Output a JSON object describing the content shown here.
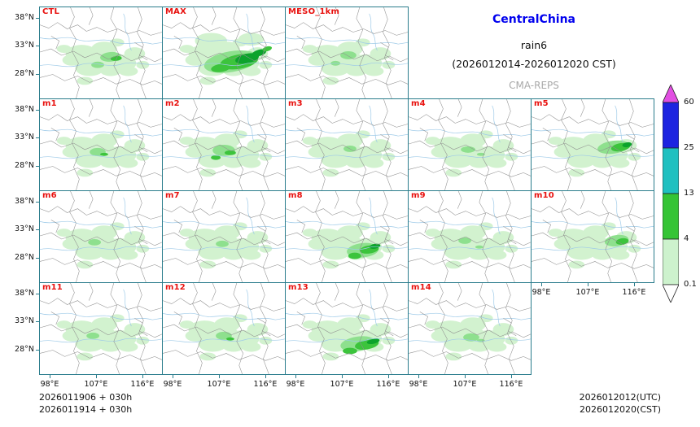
{
  "header": {
    "region": "CentralChina",
    "variable": "rain6",
    "period": "(2026012014-2026012020 CST)",
    "model": "CMA-REPS"
  },
  "footer": {
    "init1": "2026011906  +  030h",
    "init2": "2026011914  +  030h",
    "valid_utc": "2026012012(UTC)",
    "valid_cst": "2026012020(CST)"
  },
  "axes": {
    "y_ticks": [
      "38°N",
      "33°N",
      "28°N"
    ],
    "x_ticks": [
      "98°E",
      "107°E",
      "116°E"
    ]
  },
  "colorbar": {
    "labels": [
      "60",
      "25",
      "13",
      "4",
      "0.1"
    ],
    "segment_colors": [
      "#1d24e0",
      "#1fc0c0",
      "#35c435",
      "#cdf2cd"
    ],
    "over_color": "#e24fe2",
    "under_color": "#ffffff"
  },
  "precip_colors": [
    "#d2f2cf",
    "#8ee08e",
    "#3cc43c",
    "#0ca32c"
  ],
  "base_blobs": [
    [
      52,
      58,
      20,
      11,
      0,
      0
    ],
    [
      80,
      52,
      16,
      9,
      0,
      0
    ],
    [
      100,
      70,
      20,
      11,
      0,
      0
    ],
    [
      62,
      76,
      18,
      10,
      0,
      0
    ],
    [
      118,
      58,
      13,
      8,
      0,
      0
    ],
    [
      40,
      66,
      12,
      7,
      0,
      0
    ],
    [
      88,
      78,
      14,
      8,
      0,
      0
    ],
    [
      72,
      64,
      22,
      12,
      0,
      0
    ],
    [
      110,
      80,
      12,
      6,
      0,
      0
    ],
    [
      30,
      52,
      9,
      5,
      0,
      0
    ],
    [
      128,
      72,
      8,
      5,
      0,
      0
    ],
    [
      56,
      92,
      10,
      5,
      0,
      0
    ],
    [
      96,
      44,
      9,
      5,
      0,
      0
    ]
  ],
  "panels": [
    {
      "label": "CTL",
      "row": 0,
      "col": 0,
      "blobs": [
        [
          88,
          62,
          13,
          6,
          1,
          -5
        ],
        [
          95,
          64,
          7,
          3,
          2,
          -5
        ],
        [
          72,
          72,
          8,
          4,
          1,
          0
        ]
      ]
    },
    {
      "label": "MAX",
      "row": 0,
      "col": 1,
      "blobs": [
        [
          60,
          42,
          20,
          10,
          0,
          0
        ],
        [
          110,
          40,
          16,
          8,
          0,
          0
        ],
        [
          85,
          68,
          34,
          13,
          1,
          -10
        ],
        [
          95,
          68,
          24,
          9,
          2,
          -10
        ],
        [
          105,
          64,
          15,
          6,
          3,
          -12
        ],
        [
          120,
          57,
          9,
          4,
          3,
          -15
        ],
        [
          72,
          76,
          12,
          5,
          2,
          -8
        ],
        [
          130,
          52,
          6,
          3,
          2,
          -15
        ]
      ]
    },
    {
      "label": "MESO_1km",
      "row": 0,
      "col": 2,
      "blobs": [
        [
          78,
          60,
          10,
          5,
          1,
          0
        ],
        [
          62,
          70,
          6,
          3,
          1,
          0
        ]
      ]
    },
    {
      "label": "m1",
      "row": 1,
      "col": 0,
      "blobs": [
        [
          72,
          66,
          10,
          5,
          1,
          0
        ],
        [
          80,
          69,
          5,
          2,
          2,
          0
        ]
      ]
    },
    {
      "label": "m2",
      "row": 1,
      "col": 1,
      "blobs": [
        [
          76,
          64,
          14,
          7,
          1,
          0
        ],
        [
          84,
          67,
          7,
          3,
          2,
          0
        ],
        [
          66,
          73,
          6,
          3,
          2,
          0
        ]
      ]
    },
    {
      "label": "m3",
      "row": 1,
      "col": 2,
      "blobs": [
        [
          80,
          62,
          8,
          4,
          1,
          0
        ]
      ]
    },
    {
      "label": "m4",
      "row": 1,
      "col": 3,
      "blobs": [
        [
          74,
          63,
          9,
          4,
          1,
          0
        ],
        [
          90,
          69,
          5,
          2,
          1,
          0
        ]
      ]
    },
    {
      "label": "m5",
      "row": 1,
      "col": 4,
      "blobs": [
        [
          102,
          60,
          20,
          8,
          1,
          -8
        ],
        [
          111,
          60,
          12,
          5,
          2,
          -10
        ],
        [
          119,
          57,
          6,
          3,
          3,
          -10
        ]
      ]
    },
    {
      "label": "m6",
      "row": 2,
      "col": 0,
      "blobs": [
        [
          68,
          64,
          8,
          4,
          1,
          0
        ]
      ]
    },
    {
      "label": "m7",
      "row": 2,
      "col": 1,
      "blobs": [
        [
          74,
          66,
          8,
          4,
          1,
          0
        ]
      ]
    },
    {
      "label": "m8",
      "row": 2,
      "col": 2,
      "blobs": [
        [
          96,
          74,
          20,
          9,
          1,
          -6
        ],
        [
          104,
          73,
          12,
          5,
          2,
          -8
        ],
        [
          111,
          69,
          7,
          3,
          3,
          -10
        ],
        [
          86,
          81,
          8,
          4,
          2,
          0
        ]
      ]
    },
    {
      "label": "m9",
      "row": 2,
      "col": 3,
      "blobs": [
        [
          70,
          62,
          8,
          4,
          1,
          0
        ],
        [
          88,
          70,
          5,
          2,
          1,
          0
        ]
      ]
    },
    {
      "label": "m10",
      "row": 2,
      "col": 4,
      "blobs": [
        [
          106,
          62,
          15,
          7,
          1,
          -8
        ],
        [
          113,
          63,
          8,
          4,
          2,
          -8
        ]
      ]
    },
    {
      "label": "m11",
      "row": 3,
      "col": 0,
      "blobs": [
        [
          66,
          66,
          8,
          4,
          1,
          0
        ]
      ]
    },
    {
      "label": "m12",
      "row": 3,
      "col": 1,
      "blobs": [
        [
          76,
          66,
          10,
          5,
          1,
          0
        ],
        [
          84,
          70,
          5,
          2,
          2,
          0
        ]
      ]
    },
    {
      "label": "m13",
      "row": 3,
      "col": 2,
      "blobs": [
        [
          90,
          76,
          22,
          9,
          1,
          -8
        ],
        [
          101,
          77,
          15,
          6,
          2,
          -10
        ],
        [
          109,
          73,
          8,
          3,
          3,
          -12
        ],
        [
          80,
          85,
          9,
          4,
          2,
          0
        ]
      ]
    },
    {
      "label": "m14",
      "row": 3,
      "col": 3,
      "blobs": [
        [
          78,
          68,
          10,
          5,
          1,
          0
        ],
        [
          90,
          72,
          5,
          2,
          1,
          0
        ]
      ]
    }
  ],
  "chart_data": {
    "type": "heatmap",
    "title": "CentralChina rain6 (2026012014-2026012020 CST)",
    "subtitle": "CMA-REPS",
    "panels": [
      "CTL",
      "MAX",
      "MESO_1km",
      "m1",
      "m2",
      "m3",
      "m4",
      "m5",
      "m6",
      "m7",
      "m8",
      "m9",
      "m10",
      "m11",
      "m12",
      "m13",
      "m14"
    ],
    "x_ticks": [
      "98°E",
      "107°E",
      "116°E"
    ],
    "y_ticks": [
      "38°N",
      "33°N",
      "28°N"
    ],
    "colorbar_levels": [
      0.1,
      4,
      13,
      25,
      60
    ],
    "colorbar_colors": [
      "#cdf2cd",
      "#35c435",
      "#1fc0c0",
      "#1d24e0",
      "#e24fe2"
    ],
    "legend_position": "right",
    "init_times": [
      "2026011906 + 030h",
      "2026011914 + 030h"
    ],
    "valid_times": [
      "2026012012(UTC)",
      "2026012020(CST)"
    ]
  }
}
